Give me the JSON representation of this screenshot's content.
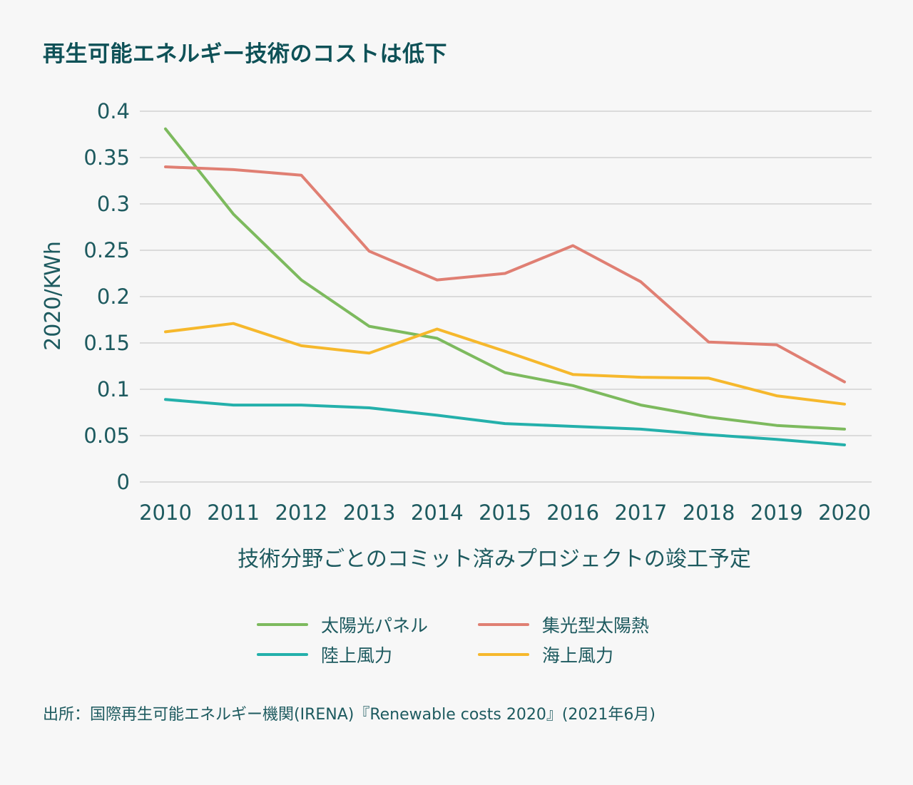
{
  "chart_data": {
    "type": "line",
    "title": "再生可能エネルギー技術のコストは低下",
    "ylabel": "2020/KWh",
    "xlabel": "技術分野ごとのコミット済みプロジェクトの竣工予定",
    "ylim": [
      0,
      0.4
    ],
    "yticks": [
      "0",
      "0.05",
      "0.1",
      "0.15",
      "0.2",
      "0.25",
      "0.3",
      "0.35",
      "0.4"
    ],
    "ytick_values": [
      0,
      0.05,
      0.1,
      0.15,
      0.2,
      0.25,
      0.3,
      0.35,
      0.4
    ],
    "categories": [
      "2010",
      "2011",
      "2012",
      "2013",
      "2014",
      "2015",
      "2016",
      "2017",
      "2018",
      "2019",
      "2020"
    ],
    "grid": true,
    "legend_position": "bottom",
    "series": [
      {
        "name": "太陽光パネル",
        "color": "#7dba5e",
        "values": [
          0.381,
          0.289,
          0.218,
          0.168,
          0.155,
          0.118,
          0.104,
          0.083,
          0.07,
          0.061,
          0.057
        ]
      },
      {
        "name": "集光型太陽熱",
        "color": "#e07f73",
        "values": [
          0.34,
          0.337,
          0.331,
          0.249,
          0.218,
          0.225,
          0.255,
          0.216,
          0.151,
          0.148,
          0.108
        ]
      },
      {
        "name": "陸上風力",
        "color": "#24b0ab",
        "values": [
          0.089,
          0.083,
          0.083,
          0.08,
          0.072,
          0.063,
          0.06,
          0.057,
          0.051,
          0.046,
          0.04
        ]
      },
      {
        "name": "海上風力",
        "color": "#f6b82c",
        "values": [
          0.162,
          0.171,
          0.147,
          0.139,
          0.165,
          0.141,
          0.116,
          0.113,
          0.112,
          0.093,
          0.084
        ]
      }
    ]
  },
  "source": "出所：国際再生可能エネルギー機関(IRENA)『Renewable costs 2020』(2021年6月)"
}
